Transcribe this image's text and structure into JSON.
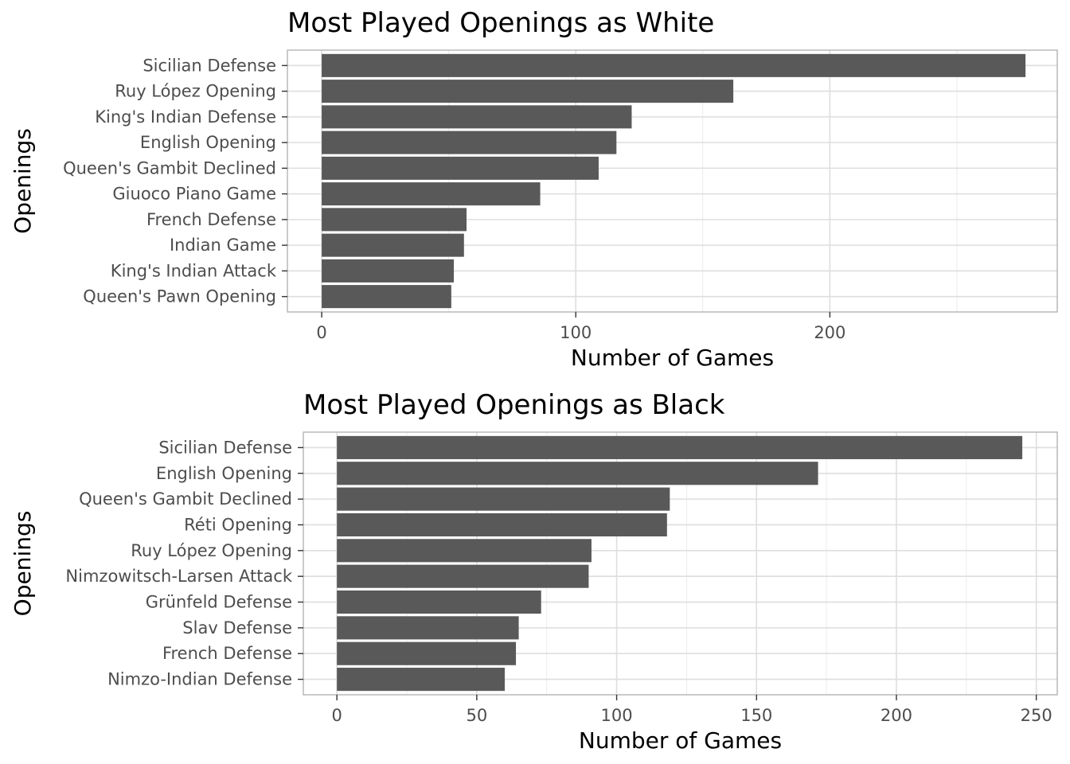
{
  "chart_data": [
    {
      "type": "bar",
      "orientation": "horizontal",
      "title": "Most Played Openings as White",
      "xlabel": "Number of Games",
      "ylabel": "Openings",
      "categories": [
        "Sicilian Defense",
        "Ruy López Opening",
        "King's Indian Defense",
        "English Opening",
        "Queen's Gambit Declined",
        "Giuoco Piano Game",
        "French Defense",
        "Indian Game",
        "King's Indian Attack",
        "Queen's Pawn Opening"
      ],
      "values": [
        277,
        162,
        122,
        116,
        109,
        86,
        57,
        56,
        52,
        51
      ],
      "xlim": [
        -13.5,
        289.5
      ],
      "xticks": [
        0,
        100,
        200
      ],
      "minor_xticks": [
        50,
        150,
        250
      ],
      "grid": true,
      "bar_color": "#595959"
    },
    {
      "type": "bar",
      "orientation": "horizontal",
      "title": "Most Played Openings as Black",
      "xlabel": "Number of Games",
      "ylabel": "Openings",
      "categories": [
        "Sicilian Defense",
        "English Opening",
        "Queen's Gambit Declined",
        "Réti Opening",
        "Ruy López Opening",
        "Nimzowitsch-Larsen Attack",
        "Grünfeld Defense",
        "Slav Defense",
        "French Defense",
        "Nimzo-Indian Defense"
      ],
      "values": [
        245,
        172,
        119,
        118,
        91,
        90,
        73,
        65,
        64,
        60
      ],
      "xlim": [
        -12,
        257.5
      ],
      "xticks": [
        0,
        50,
        100,
        150,
        200,
        250
      ],
      "minor_xticks": [
        25,
        75,
        125,
        175,
        225
      ],
      "grid": true,
      "bar_color": "#595959"
    }
  ]
}
